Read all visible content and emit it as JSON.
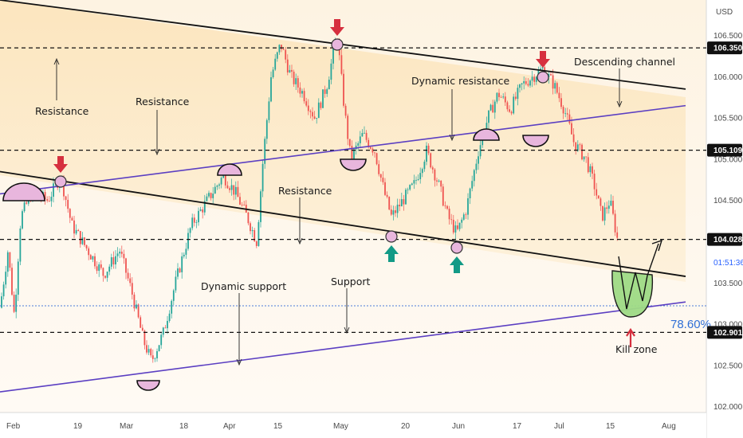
{
  "chart_data": {
    "type": "candlestick",
    "currency": "USD",
    "x_tick_labels": [
      "Feb",
      "19",
      "Mar",
      "18",
      "Apr",
      "15",
      "May",
      "20",
      "Jun",
      "17",
      "Jul",
      "15",
      "Aug"
    ],
    "y_tick_labels": [
      "106.500",
      "106.000",
      "105.500",
      "105.000",
      "104.500",
      "103.500",
      "103.000",
      "102.500",
      "102.000"
    ],
    "ylim": [
      101.93,
      106.93
    ],
    "key_levels": [
      {
        "label": "106.350",
        "value": 106.35,
        "style": "dashed"
      },
      {
        "label": "105.109",
        "value": 105.109,
        "style": "dashed"
      },
      {
        "label": "104.028",
        "value": 104.028,
        "style": "dashed"
      },
      {
        "label": "102.901",
        "value": 102.901,
        "style": "dashed"
      }
    ],
    "countdown": {
      "label": "01:51:36",
      "value": 103.75
    },
    "fib_level": {
      "label": "78.60%",
      "value": 103.27
    },
    "trend_lines": [
      {
        "name": "descending-channel-upper",
        "x": [
          0,
          860
        ],
        "y": [
          106.93,
          105.85
        ],
        "color": "#111111"
      },
      {
        "name": "descending-channel-lower",
        "x": [
          0,
          860
        ],
        "y": [
          104.85,
          103.58
        ],
        "color": "#111111"
      },
      {
        "name": "dynamic-resistance",
        "x": [
          0,
          860
        ],
        "y": [
          104.58,
          105.65
        ],
        "color": "#5b3fc2"
      },
      {
        "name": "dynamic-support",
        "x": [
          0,
          860
        ],
        "y": [
          102.18,
          103.27
        ],
        "color": "#5b3fc2"
      }
    ],
    "annotations": [
      {
        "text": "Resistance"
      },
      {
        "text": "Resistance"
      },
      {
        "text": "Dynamic resistance"
      },
      {
        "text": "Descending channel"
      },
      {
        "text": "Resistance"
      },
      {
        "text": "Dynamic support"
      },
      {
        "text": "Support"
      },
      {
        "text": "Kill zone"
      }
    ],
    "colors": {
      "up": "#26a69a",
      "down": "#ef5350",
      "channel_fill": "#fbe7c3",
      "background": "#fdf6ec",
      "level_box": "#111111",
      "countdown_box": "#2962ff",
      "fib_text": "#2f6fd6"
    }
  }
}
